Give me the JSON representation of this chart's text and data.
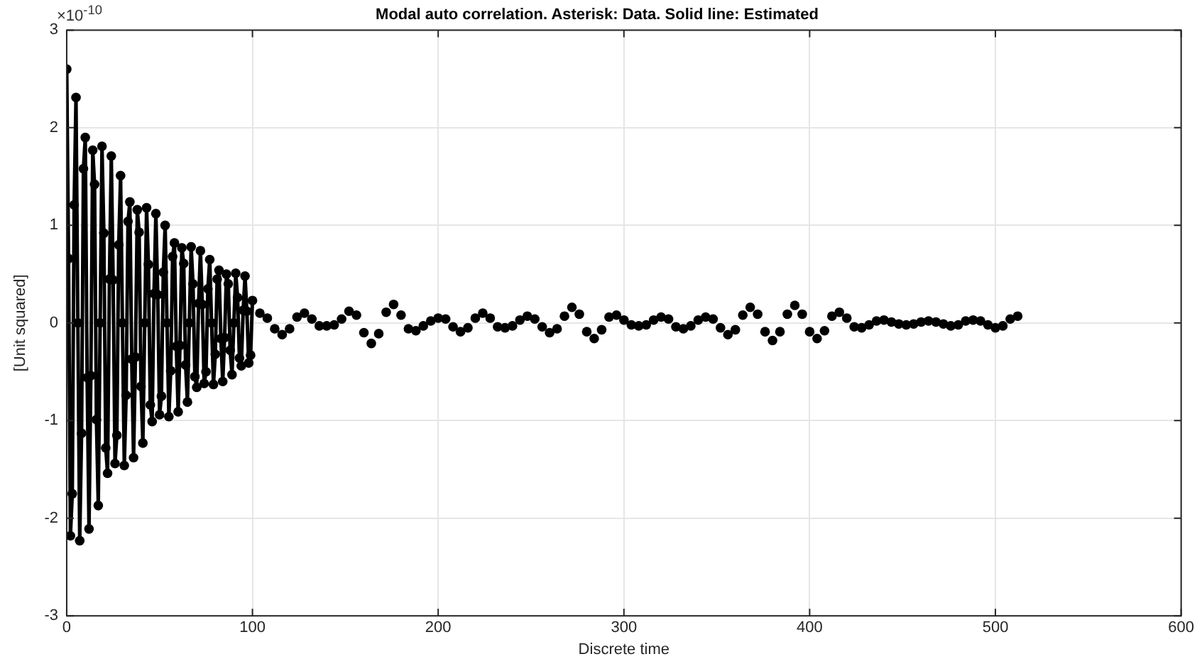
{
  "chart_data": {
    "type": "scatter",
    "title": "Modal auto correlation. Asterisk: Data. Solid line: Estimated",
    "xlabel": "Discrete time",
    "ylabel": "[Unit squared]",
    "annotations": [
      "×10$^{-10}$"
    ],
    "xlim": [
      0,
      600
    ],
    "xticks": [
      0,
      100,
      200,
      300,
      400,
      500,
      600
    ],
    "ylim": [
      -3,
      3
    ],
    "yticks": [
      -3,
      -2,
      -1,
      0,
      1,
      2,
      3
    ],
    "grid": true,
    "legend": false,
    "marker": "circle",
    "series": [
      {
        "type": "line",
        "color": "#000000",
        "line_style": "solid",
        "marker": "none",
        "x": [
          0,
          1,
          2,
          3,
          4,
          5,
          6,
          7,
          8,
          9,
          10,
          11,
          12,
          13,
          14,
          15,
          16,
          17,
          18,
          19,
          20,
          21,
          22,
          23,
          24,
          25,
          26,
          27,
          28,
          29,
          30,
          31,
          32,
          33,
          34,
          35,
          36,
          37,
          38,
          39,
          40,
          41,
          42,
          43,
          44,
          45,
          46,
          47,
          48,
          49,
          50,
          51,
          52,
          53,
          54,
          55,
          56,
          57,
          58,
          59,
          60,
          61,
          62,
          63,
          64,
          65,
          66,
          67,
          68,
          69,
          70,
          71,
          72,
          73,
          74,
          75,
          76,
          77,
          78,
          79,
          80,
          81,
          82,
          83,
          84,
          85,
          86,
          87,
          88,
          89,
          90,
          91,
          92,
          93,
          94,
          95,
          96,
          97,
          98,
          99,
          100
        ],
        "values": [
          2.6,
          0.66,
          -2.18,
          -1.75,
          1.21,
          2.31,
          0,
          -2.23,
          -1.13,
          1.58,
          1.9,
          -0.56,
          -2.11,
          -0.54,
          1.77,
          1.42,
          -0.99,
          -1.87,
          0,
          1.81,
          0.92,
          -1.28,
          -1.54,
          0.45,
          1.71,
          0.44,
          -1.44,
          -1.15,
          0.8,
          1.51,
          0,
          -1.46,
          -0.74,
          1.04,
          1.24,
          -0.37,
          -1.38,
          -0.35,
          1.16,
          0.93,
          -0.65,
          -1.23,
          0,
          1.18,
          0.6,
          -0.84,
          -1.01,
          0.3,
          1.12,
          0.29,
          -0.94,
          -0.75,
          0.52,
          1.0,
          0,
          -0.96,
          -0.49,
          0.68,
          0.82,
          -0.24,
          -0.91,
          -0.23,
          0.77,
          0.61,
          -0.43,
          -0.81,
          0,
          0.78,
          0.4,
          -0.55,
          -0.66,
          0.2,
          0.74,
          0.19,
          -0.62,
          -0.5,
          0.35,
          0.65,
          0,
          -0.63,
          -0.32,
          0.45,
          0.54,
          -0.16,
          -0.6,
          -0.15,
          0.5,
          0.4,
          -0.28,
          -0.53,
          0,
          0.51,
          0.26,
          -0.36,
          -0.44,
          0.13,
          0.48,
          0.12,
          -0.41,
          -0.33,
          0.23
        ]
      },
      {
        "color": "#000000",
        "x": [
          0,
          1,
          2,
          3,
          4,
          5,
          6,
          7,
          8,
          9,
          10,
          11,
          12,
          13,
          14,
          15,
          16,
          17,
          18,
          19,
          20,
          21,
          22,
          23,
          24,
          25,
          26,
          27,
          28,
          29,
          30,
          31,
          32,
          33,
          34,
          35,
          36,
          37,
          38,
          39,
          40,
          41,
          42,
          43,
          44,
          45,
          46,
          47,
          48,
          49,
          50,
          51,
          52,
          53,
          54,
          55,
          56,
          57,
          58,
          59,
          60,
          61,
          62,
          63,
          64,
          65,
          66,
          67,
          68,
          69,
          70,
          71,
          72,
          73,
          74,
          75,
          76,
          77,
          78,
          79,
          80,
          81,
          82,
          83,
          84,
          85,
          86,
          87,
          88,
          89,
          90,
          91,
          92,
          93,
          94,
          95,
          96,
          97,
          98,
          99,
          100,
          104,
          108,
          112,
          116,
          120,
          124,
          128,
          132,
          136,
          140,
          144,
          148,
          152,
          156,
          160,
          164,
          168,
          172,
          176,
          180,
          184,
          188,
          192,
          196,
          200,
          204,
          208,
          212,
          216,
          220,
          224,
          228,
          232,
          236,
          240,
          244,
          248,
          252,
          256,
          260,
          264,
          268,
          272,
          276,
          280,
          284,
          288,
          292,
          296,
          300,
          304,
          308,
          312,
          316,
          320,
          324,
          328,
          332,
          336,
          340,
          344,
          348,
          352,
          356,
          360,
          364,
          368,
          372,
          376,
          380,
          384,
          388,
          392,
          396,
          400,
          404,
          408,
          412,
          416,
          420,
          424,
          428,
          432,
          436,
          440,
          444,
          448,
          452,
          456,
          460,
          464,
          468,
          472,
          476,
          480,
          484,
          488,
          492,
          496,
          500,
          504,
          508,
          512
        ],
        "values": [
          2.6,
          0.66,
          -2.18,
          -1.75,
          1.21,
          2.31,
          0,
          -2.23,
          -1.13,
          1.58,
          1.9,
          -0.56,
          -2.11,
          -0.54,
          1.77,
          1.42,
          -0.99,
          -1.87,
          0,
          1.81,
          0.92,
          -1.28,
          -1.54,
          0.45,
          1.71,
          0.44,
          -1.44,
          -1.15,
          0.8,
          1.51,
          0,
          -1.46,
          -0.74,
          1.04,
          1.24,
          -0.37,
          -1.38,
          -0.35,
          1.16,
          0.93,
          -0.65,
          -1.23,
          0,
          1.18,
          0.6,
          -0.84,
          -1.01,
          0.3,
          1.12,
          0.29,
          -0.94,
          -0.75,
          0.52,
          1.0,
          0,
          -0.96,
          -0.49,
          0.68,
          0.82,
          -0.24,
          -0.91,
          -0.23,
          0.77,
          0.61,
          -0.43,
          -0.81,
          0,
          0.78,
          0.4,
          -0.55,
          -0.66,
          0.2,
          0.74,
          0.19,
          -0.62,
          -0.5,
          0.35,
          0.65,
          0,
          -0.63,
          -0.32,
          0.45,
          0.54,
          -0.16,
          -0.6,
          -0.15,
          0.5,
          0.4,
          -0.28,
          -0.53,
          0,
          0.51,
          0.26,
          -0.36,
          -0.44,
          0.13,
          0.48,
          0.12,
          -0.41,
          -0.33,
          0.23,
          0.1,
          0.05,
          -0.06,
          -0.12,
          -0.06,
          0.06,
          0.1,
          0.04,
          -0.03,
          -0.03,
          -0.02,
          0.04,
          0.12,
          0.08,
          -0.1,
          -0.21,
          -0.11,
          0.11,
          0.19,
          0.08,
          -0.06,
          -0.08,
          -0.03,
          0.02,
          0.05,
          0.04,
          -0.04,
          -0.09,
          -0.05,
          0.05,
          0.1,
          0.05,
          -0.04,
          -0.05,
          -0.03,
          0.03,
          0.07,
          0.04,
          -0.04,
          -0.1,
          -0.06,
          0.07,
          0.16,
          0.09,
          -0.09,
          -0.16,
          -0.07,
          0.06,
          0.08,
          0.03,
          -0.02,
          -0.03,
          -0.02,
          0.03,
          0.06,
          0.04,
          -0.04,
          -0.06,
          -0.03,
          0.03,
          0.06,
          0.04,
          -0.05,
          -0.12,
          -0.07,
          0.08,
          0.16,
          0.09,
          -0.09,
          -0.18,
          -0.09,
          0.09,
          0.18,
          0.09,
          -0.09,
          -0.16,
          -0.08,
          0.07,
          0.11,
          0.05,
          -0.04,
          -0.05,
          -0.02,
          0.02,
          0.03,
          0.01,
          -0.01,
          -0.02,
          -0.01,
          0.01,
          0.02,
          0.01,
          -0.01,
          -0.03,
          -0.02,
          0.02,
          0.03,
          0.02,
          -0.02,
          -0.05,
          -0.03,
          0.04,
          0.07
        ]
      }
    ]
  }
}
